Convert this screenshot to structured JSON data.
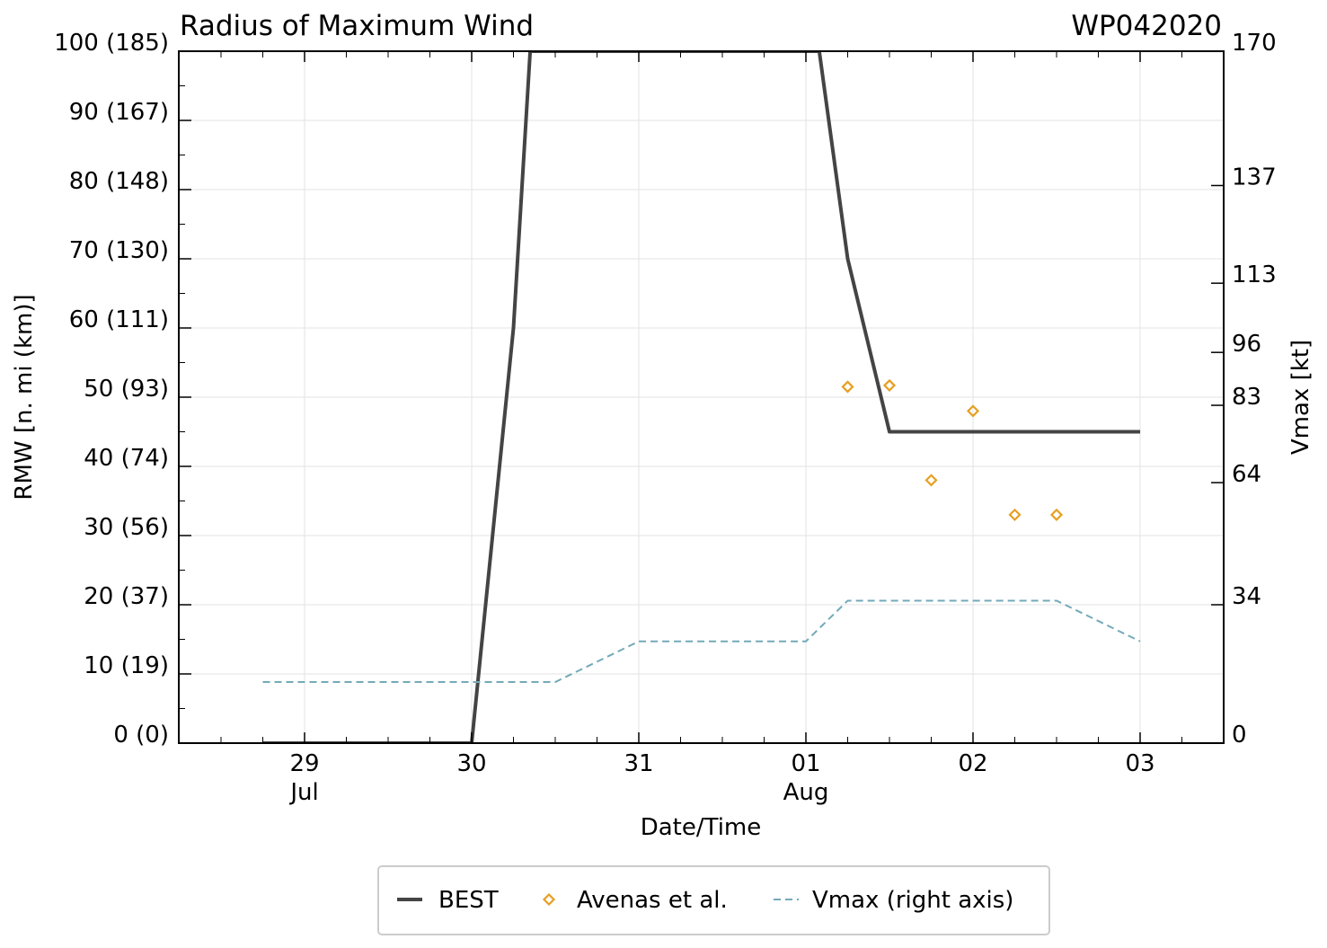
{
  "chart_data": {
    "type": "line",
    "title": "Radius of Maximum Wind",
    "storm_id": "WP042020",
    "xlabel": "Date/Time",
    "ylabel": "RMW [n. mi (km)]",
    "y2label": "Vmax [kt]",
    "x_unit": "days since 2020-07-29 00 UTC",
    "xlim": [
      -0.75,
      5.5
    ],
    "ylim": [
      0,
      100
    ],
    "y2lim": [
      0,
      170
    ],
    "grid": true,
    "legend_position": "below",
    "x_ticks": [
      {
        "x": 0,
        "label": "29",
        "sublabel": "Jul"
      },
      {
        "x": 1,
        "label": "30",
        "sublabel": ""
      },
      {
        "x": 2,
        "label": "31",
        "sublabel": ""
      },
      {
        "x": 3,
        "label": "01",
        "sublabel": "Aug"
      },
      {
        "x": 4,
        "label": "02",
        "sublabel": ""
      },
      {
        "x": 5,
        "label": "03",
        "sublabel": ""
      }
    ],
    "y_ticks": [
      {
        "y": 0,
        "label": "0 (0)"
      },
      {
        "y": 10,
        "label": "10 (19)"
      },
      {
        "y": 20,
        "label": "20 (37)"
      },
      {
        "y": 30,
        "label": "30 (56)"
      },
      {
        "y": 40,
        "label": "40 (74)"
      },
      {
        "y": 50,
        "label": "50 (93)"
      },
      {
        "y": 60,
        "label": "60 (111)"
      },
      {
        "y": 70,
        "label": "70 (130)"
      },
      {
        "y": 80,
        "label": "80 (148)"
      },
      {
        "y": 90,
        "label": "90 (167)"
      },
      {
        "y": 100,
        "label": "100 (185)"
      }
    ],
    "y2_ticks": [
      {
        "y": 0,
        "label": "0"
      },
      {
        "y": 34,
        "label": "34"
      },
      {
        "y": 64,
        "label": "64"
      },
      {
        "y": 83,
        "label": "83"
      },
      {
        "y": 96,
        "label": "96"
      },
      {
        "y": 113,
        "label": "113"
      },
      {
        "y": 137,
        "label": "137"
      },
      {
        "y": 170,
        "label": "170"
      }
    ],
    "series": [
      {
        "name": "BEST",
        "kind": "line",
        "axis": "left",
        "color": "#444444",
        "x": [
          -0.25,
          1.0,
          1.25,
          1.35,
          3.08,
          3.25,
          3.5,
          5.0
        ],
        "y": [
          0,
          0,
          60,
          100,
          100,
          70,
          45,
          45
        ]
      },
      {
        "name": "Avenas et al.",
        "kind": "scatter",
        "axis": "left",
        "color": "#e69f22",
        "x": [
          3.25,
          3.5,
          3.75,
          4.0,
          4.25,
          4.5
        ],
        "y": [
          51.5,
          51.7,
          38,
          48,
          33,
          33
        ]
      },
      {
        "name": "Vmax (right axis)",
        "kind": "dashed-line",
        "axis": "right",
        "color": "#73aab8",
        "x": [
          -0.25,
          1.5,
          2.0,
          3.0,
          3.25,
          4.5,
          5.0
        ],
        "y": [
          15,
          15,
          25,
          25,
          35,
          35,
          25
        ]
      }
    ]
  }
}
